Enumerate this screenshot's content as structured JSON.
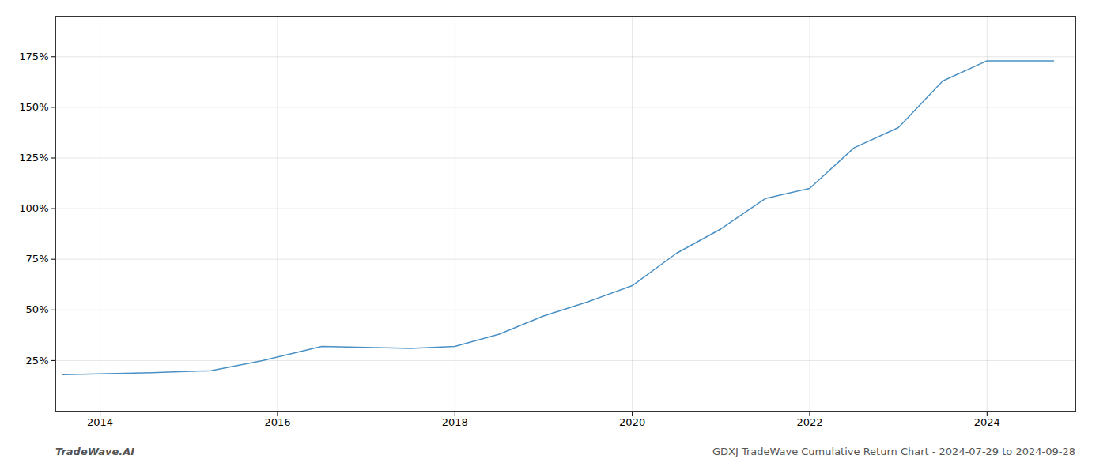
{
  "chart_data": {
    "type": "line",
    "annotations": [
      "TradeWave.AI",
      "GDXJ TradeWave Cumulative Return Chart - 2024-07-29 to 2024-09-28"
    ],
    "x": [
      2013.58,
      2014.58,
      2015.25,
      2015.83,
      2016.5,
      2017.0,
      2017.5,
      2018.0,
      2018.5,
      2019.0,
      2019.5,
      2020.0,
      2020.5,
      2021.0,
      2021.5,
      2022.0,
      2022.5,
      2023.0,
      2023.5,
      2024.0,
      2024.5,
      2024.75
    ],
    "values": [
      18,
      19,
      20,
      25,
      32,
      31.5,
      31,
      32,
      38,
      47,
      54,
      62,
      78,
      90,
      105,
      110,
      130,
      140,
      163,
      173,
      173,
      173
    ],
    "color": "#4a90c4",
    "xlim": [
      2013.5,
      2025.0
    ],
    "ylim": [
      0,
      195
    ],
    "xticks": [
      2014,
      2016,
      2018,
      2020,
      2022,
      2024
    ],
    "yticks": [
      {
        "value": 25,
        "label": "25%"
      },
      {
        "value": 50,
        "label": "50%"
      },
      {
        "value": 75,
        "label": "75%"
      },
      {
        "value": 100,
        "label": "100%"
      },
      {
        "value": 125,
        "label": "125%"
      },
      {
        "value": 150,
        "label": "150%"
      },
      {
        "value": 175,
        "label": "175%"
      }
    ],
    "grid": true
  }
}
